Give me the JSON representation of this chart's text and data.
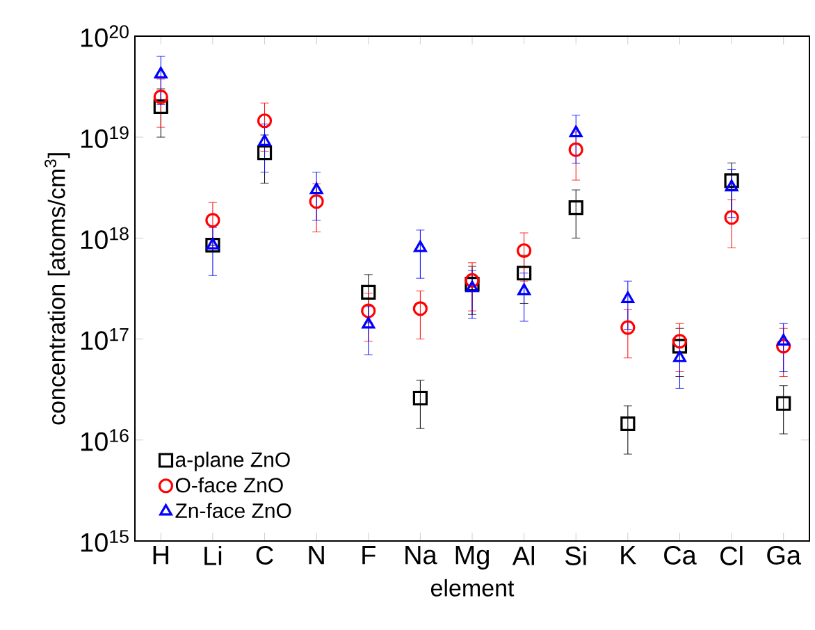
{
  "chart_data": {
    "type": "scatter",
    "xlabel": "element",
    "ylabel": "concentration [atoms/cm$^{3}$]",
    "categories": [
      "H",
      "Li",
      "C",
      "N",
      "F",
      "Na",
      "Mg",
      "Al",
      "Si",
      "K",
      "Ca",
      "Cl",
      "Ga"
    ],
    "log": "y",
    "ylim": [
      1000000000000000.0,
      1e+20
    ],
    "yticks": [
      {
        "value": 1000000000000000.0,
        "label": "10$^{15}$"
      },
      {
        "value": 1e+16,
        "label": "10$^{16}$"
      },
      {
        "value": 1e+17,
        "label": "10$^{17}$"
      },
      {
        "value": 1e+18,
        "label": "10$^{18}$"
      },
      {
        "value": 1e+19,
        "label": "10$^{19}$"
      },
      {
        "value": 1e+20,
        "label": "10$^{20}$"
      }
    ],
    "legend": "bottom left",
    "grid": false,
    "series": [
      {
        "name": "a-plane ZnO",
        "color": "#000000",
        "marker": "square",
        "values": [
          2e+19,
          8.5e+17,
          7e+18,
          null,
          2.9e+17,
          2.6e+16,
          3.5e+17,
          4.5e+17,
          2e+18,
          1.45e+16,
          8.5e+16,
          3.7e+18,
          2.3e+16
        ],
        "errors": [
          1e+19,
          null,
          3.5e+18,
          null,
          1.45e+17,
          1.3e+16,
          1.75e+17,
          2.25e+17,
          1e+18,
          7250000000000000.0,
          4.25e+16,
          1.85e+18,
          1.15e+16
        ]
      },
      {
        "name": "O-face ZnO",
        "color": "#ff0000",
        "marker": "circle",
        "values": [
          2.5e+19,
          1.5e+18,
          1.45e+19,
          2.3e+18,
          1.9e+17,
          2e+17,
          3.8e+17,
          7.5e+17,
          7.5e+18,
          1.3e+17,
          9.5e+16,
          1.6e+18,
          8.5e+16
        ],
        "errors": [
          1.25e+19,
          7.5e+17,
          7.25e+18,
          1.15e+18,
          9.5e+16,
          1e+17,
          1.9e+17,
          3.75e+17,
          3.75e+18,
          6.5e+16,
          4.75e+16,
          8e+17,
          4.25e+16
        ]
      },
      {
        "name": "Zn-face ZnO",
        "color": "#0000ff",
        "marker": "triangle",
        "values": [
          4.2e+19,
          8.5e+17,
          9e+18,
          3e+18,
          1.4e+17,
          8e+17,
          3.2e+17,
          3e+17,
          1.1e+19,
          2.5e+17,
          6.5e+16,
          3.2e+18,
          9.5e+16
        ],
        "errors": [
          2.1e+19,
          4.25e+17,
          4.5e+18,
          1.5e+18,
          7e+16,
          4e+17,
          1.6e+17,
          1.5e+17,
          5.5e+18,
          1.25e+17,
          3.25e+16,
          1.6e+18,
          4.75e+16
        ]
      }
    ]
  }
}
